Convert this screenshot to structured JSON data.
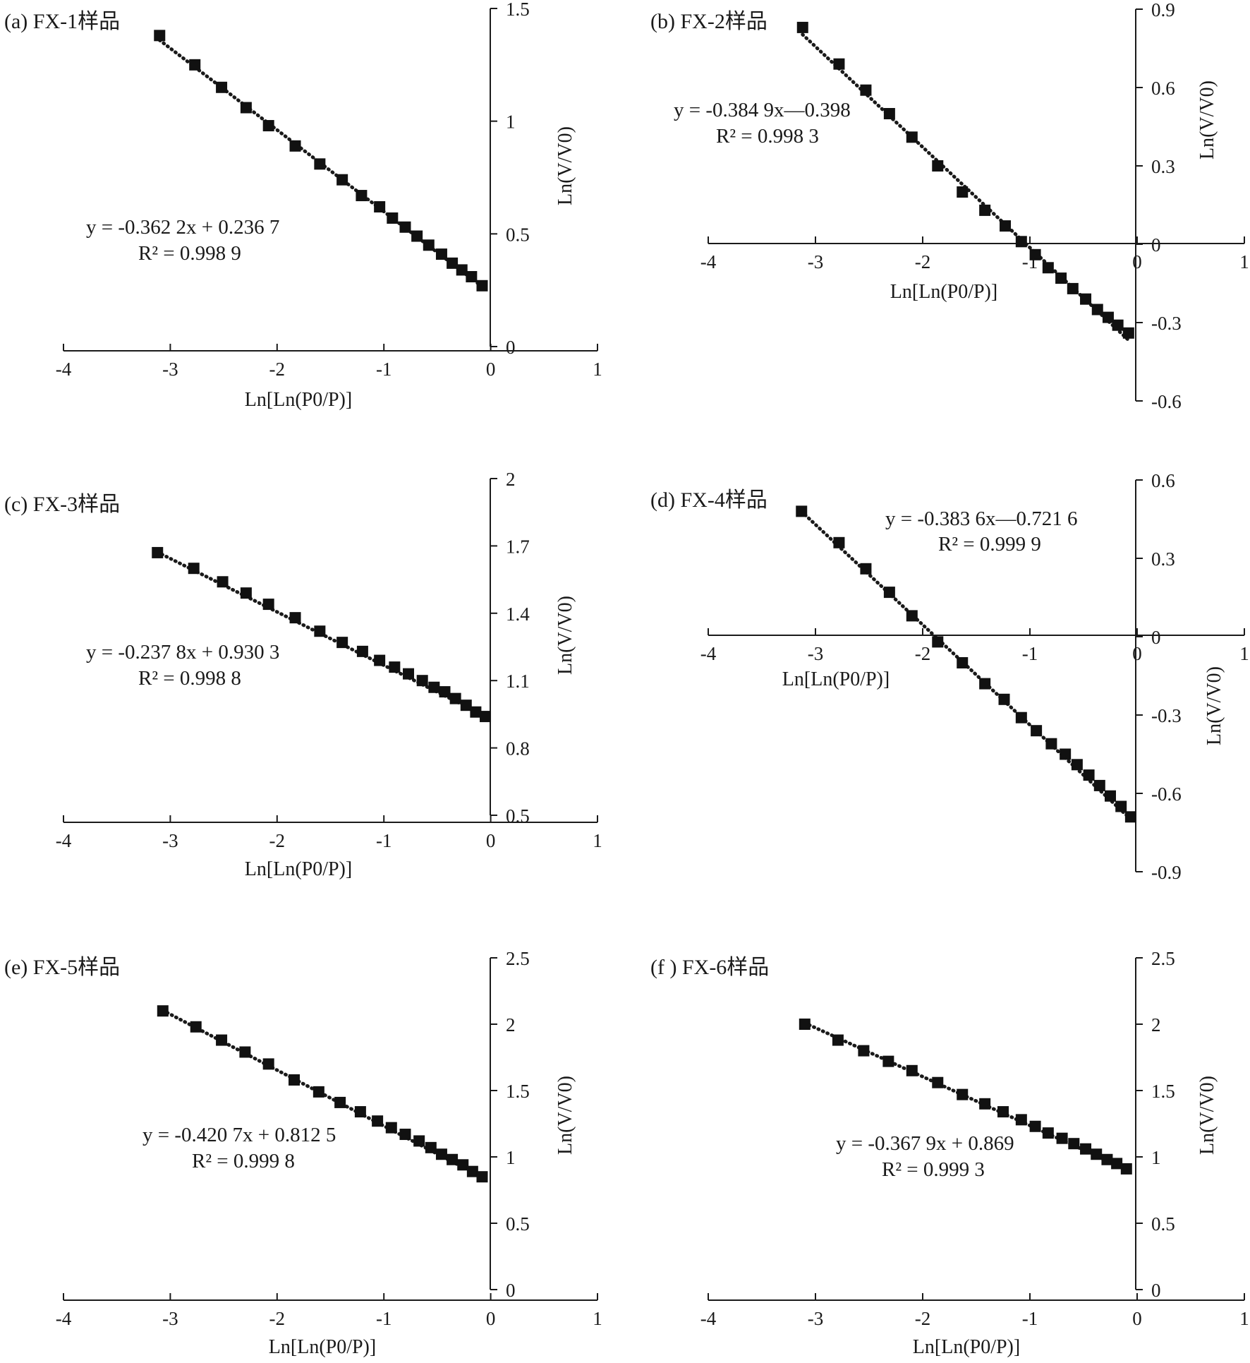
{
  "figure": {
    "x_axis_title": "Ln[Ln(P0/P)]",
    "y_axis_title": "Ln(V/V0)",
    "colors": {
      "ink": "#111111",
      "background": "#ffffff"
    }
  },
  "chart_data": [
    {
      "type": "scatter",
      "title": "(a) FX-1样品",
      "xlabel": "Ln[Ln(P0/P)]",
      "ylabel": "Ln(V/V0)",
      "xlim": [
        -4,
        1
      ],
      "ylim": [
        0,
        1.5
      ],
      "xticks": [
        -4,
        -3,
        -2,
        -1,
        0,
        1
      ],
      "yticks": [
        0,
        0.5,
        1,
        1.5
      ],
      "x": [
        -3.1,
        -2.77,
        -2.52,
        -2.29,
        -2.08,
        -1.83,
        -1.6,
        -1.39,
        -1.21,
        -1.04,
        -0.92,
        -0.8,
        -0.69,
        -0.58,
        -0.46,
        -0.36,
        -0.27,
        -0.18,
        -0.08
      ],
      "y": [
        1.38,
        1.25,
        1.15,
        1.06,
        0.98,
        0.89,
        0.81,
        0.74,
        0.67,
        0.62,
        0.57,
        0.53,
        0.49,
        0.45,
        0.41,
        0.37,
        0.34,
        0.31,
        0.27
      ],
      "trendline": {
        "slope": -0.3622,
        "intercept": 0.2367,
        "x_range": [
          -3.1,
          -0.08
        ]
      },
      "equation": "y = -0.362 2x + 0.236 7",
      "r_squared": "R² = 0.998 9"
    },
    {
      "type": "scatter",
      "title": "(b) FX-2样品",
      "xlabel": "Ln[Ln(P0/P)]",
      "ylabel": "Ln(V/V0)",
      "xlim": [
        -4,
        1
      ],
      "ylim": [
        -0.6,
        0.9
      ],
      "xticks": [
        -4,
        -3,
        -2,
        -1,
        0,
        1
      ],
      "yticks": [
        -0.6,
        -0.3,
        0,
        0.3,
        0.6,
        0.9
      ],
      "x": [
        -3.12,
        -2.78,
        -2.53,
        -2.31,
        -2.1,
        -1.86,
        -1.63,
        -1.42,
        -1.23,
        -1.08,
        -0.95,
        -0.83,
        -0.71,
        -0.6,
        -0.48,
        -0.37,
        -0.27,
        -0.18,
        -0.08
      ],
      "y": [
        0.83,
        0.69,
        0.59,
        0.5,
        0.41,
        0.3,
        0.2,
        0.13,
        0.07,
        0.01,
        -0.04,
        -0.09,
        -0.13,
        -0.17,
        -0.21,
        -0.25,
        -0.28,
        -0.31,
        -0.34
      ],
      "trendline": {
        "slope": -0.3849,
        "intercept": -0.398,
        "x_range": [
          -3.12,
          -0.08
        ]
      },
      "equation": "y = -0.384 9x—0.398",
      "r_squared": "R² = 0.998 3"
    },
    {
      "type": "scatter",
      "title": "(c) FX-3样品",
      "xlabel": "Ln[Ln(P0/P)]",
      "ylabel": "Ln(V/V0)",
      "xlim": [
        -4,
        1
      ],
      "ylim": [
        0.5,
        2
      ],
      "xticks": [
        -4,
        -3,
        -2,
        -1,
        0,
        1
      ],
      "yticks": [
        0.5,
        0.8,
        1.1,
        1.4,
        1.7,
        2
      ],
      "x": [
        -3.12,
        -2.78,
        -2.51,
        -2.29,
        -2.08,
        -1.83,
        -1.6,
        -1.39,
        -1.2,
        -1.04,
        -0.9,
        -0.77,
        -0.64,
        -0.53,
        -0.43,
        -0.33,
        -0.23,
        -0.14,
        -0.05
      ],
      "y": [
        1.67,
        1.6,
        1.54,
        1.49,
        1.44,
        1.38,
        1.32,
        1.27,
        1.23,
        1.19,
        1.16,
        1.13,
        1.1,
        1.07,
        1.05,
        1.02,
        0.99,
        0.96,
        0.94
      ],
      "trendline": {
        "slope": -0.2378,
        "intercept": 0.9303,
        "x_range": [
          -3.12,
          -0.05
        ]
      },
      "equation": "y = -0.237 8x + 0.930 3",
      "r_squared": "R² = 0.998 8"
    },
    {
      "type": "scatter",
      "title": "(d) FX-4样品",
      "xlabel": "Ln[Ln(P0/P)]",
      "ylabel": "Ln(V/V0)",
      "xlim": [
        -4,
        1
      ],
      "ylim": [
        -0.9,
        0.6
      ],
      "xticks": [
        -4,
        -3,
        -2,
        -1,
        0,
        1
      ],
      "yticks": [
        -0.9,
        -0.6,
        -0.3,
        0,
        0.3,
        0.6
      ],
      "x": [
        -3.13,
        -2.78,
        -2.53,
        -2.31,
        -2.1,
        -1.86,
        -1.63,
        -1.42,
        -1.24,
        -1.08,
        -0.94,
        -0.8,
        -0.67,
        -0.56,
        -0.45,
        -0.35,
        -0.25,
        -0.15,
        -0.06
      ],
      "y": [
        0.48,
        0.36,
        0.26,
        0.17,
        0.08,
        -0.02,
        -0.1,
        -0.18,
        -0.24,
        -0.31,
        -0.36,
        -0.41,
        -0.45,
        -0.49,
        -0.53,
        -0.57,
        -0.61,
        -0.65,
        -0.69
      ],
      "trendline": {
        "slope": -0.3836,
        "intercept": -0.7216,
        "x_range": [
          -3.13,
          -0.06
        ]
      },
      "equation": "y = -0.383 6x—0.721 6",
      "r_squared": "R² = 0.999 9"
    },
    {
      "type": "scatter",
      "title": "(e) FX-5样品",
      "xlabel": "Ln[Ln(P0/P)]",
      "ylabel": "Ln(V/V0)",
      "xlim": [
        -4,
        1
      ],
      "ylim": [
        0,
        2.5
      ],
      "xticks": [
        -4,
        -3,
        -2,
        -1,
        0,
        1
      ],
      "yticks": [
        0,
        0.5,
        1,
        1.5,
        2,
        2.5
      ],
      "x": [
        -3.07,
        -2.76,
        -2.52,
        -2.3,
        -2.08,
        -1.84,
        -1.61,
        -1.41,
        -1.22,
        -1.06,
        -0.93,
        -0.8,
        -0.67,
        -0.56,
        -0.46,
        -0.36,
        -0.26,
        -0.17,
        -0.08
      ],
      "y": [
        2.1,
        1.98,
        1.88,
        1.79,
        1.7,
        1.58,
        1.49,
        1.41,
        1.34,
        1.27,
        1.22,
        1.17,
        1.12,
        1.07,
        1.02,
        0.98,
        0.94,
        0.89,
        0.85
      ],
      "trendline": {
        "slope": -0.4207,
        "intercept": 0.8125,
        "x_range": [
          -3.07,
          -0.08
        ]
      },
      "equation": "y = -0.420 7x + 0.812 5",
      "r_squared": "R² = 0.999 8"
    },
    {
      "type": "scatter",
      "title": "(f ) FX-6样品",
      "xlabel": "Ln[Ln(P0/P)]",
      "ylabel": "Ln(V/V0)",
      "xlim": [
        -4,
        1
      ],
      "ylim": [
        0,
        2.5
      ],
      "xticks": [
        -4,
        -3,
        -2,
        -1,
        0,
        1
      ],
      "yticks": [
        0,
        0.5,
        1,
        1.5,
        2,
        2.5
      ],
      "x": [
        -3.1,
        -2.79,
        -2.55,
        -2.32,
        -2.1,
        -1.86,
        -1.63,
        -1.42,
        -1.25,
        -1.08,
        -0.95,
        -0.83,
        -0.7,
        -0.59,
        -0.48,
        -0.38,
        -0.28,
        -0.19,
        -0.1
      ],
      "y": [
        2.0,
        1.88,
        1.8,
        1.72,
        1.65,
        1.56,
        1.47,
        1.4,
        1.34,
        1.28,
        1.23,
        1.18,
        1.14,
        1.1,
        1.06,
        1.02,
        0.98,
        0.95,
        0.91
      ],
      "trendline": {
        "slope": -0.3679,
        "intercept": 0.869,
        "x_range": [
          -3.1,
          -0.1
        ]
      },
      "equation": "y = -0.367 9x + 0.869",
      "r_squared": "R² = 0.999 3"
    }
  ]
}
